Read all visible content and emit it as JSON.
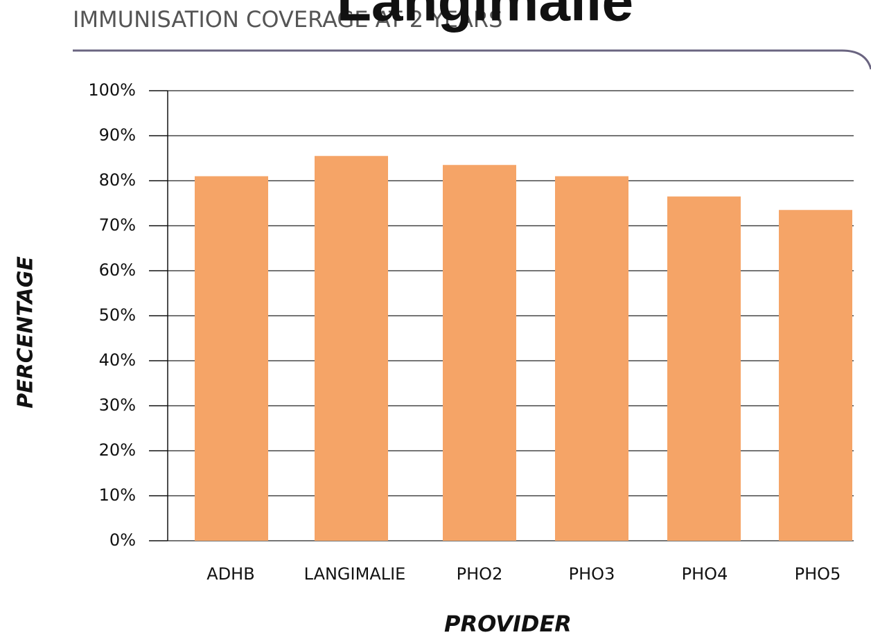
{
  "chart_data": {
    "type": "bar",
    "title": "IMMUNISATION COVERAGE AT 2 YEARS",
    "annotation": "Langimalie",
    "x_label": "PROVIDER",
    "y_label": "PERCENTAGE",
    "categories": [
      "ADHB",
      "LANGIMALIE",
      "PHO2",
      "PHO3",
      "PHO4",
      "PHO5"
    ],
    "values": [
      81,
      85.5,
      83.5,
      81,
      76.5,
      73.5
    ],
    "color": "#f5a467",
    "ylim": [
      0,
      100
    ],
    "yticks": [
      {
        "value": 0,
        "label": "0%"
      },
      {
        "value": 10,
        "label": "10%"
      },
      {
        "value": 20,
        "label": "20%"
      },
      {
        "value": 30,
        "label": "30%"
      },
      {
        "value": 40,
        "label": "40%"
      },
      {
        "value": 50,
        "label": "50%"
      },
      {
        "value": 60,
        "label": "60%"
      },
      {
        "value": 70,
        "label": "70%"
      },
      {
        "value": 80,
        "label": "80%"
      },
      {
        "value": 90,
        "label": "90%"
      },
      {
        "value": 100,
        "label": "100%"
      }
    ],
    "grid": true
  }
}
